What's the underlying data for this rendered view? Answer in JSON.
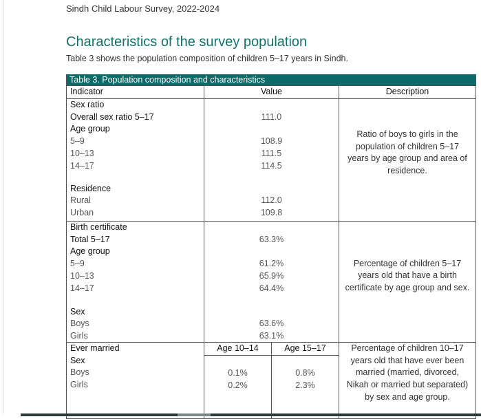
{
  "running_header": "Sindh Child Labour Survey, 2022-2024",
  "section_title": "Characteristics of the survey population",
  "intro": "Table 3 shows the population composition of children 5–17 years in Sindh.",
  "table": {
    "caption": "Table 3. Population composition and characteristics",
    "headers": [
      "Indicator",
      "Value",
      "Description"
    ],
    "sex_ratio": {
      "label": "Sex ratio",
      "overall_label": "Overall sex ratio 5–17",
      "overall": "111.0",
      "age_group_label": "Age group",
      "ages": [
        {
          "label": "5–9",
          "value": "108.9"
        },
        {
          "label": "10–13",
          "value": "111.5"
        },
        {
          "label": "14–17",
          "value": "114.5"
        }
      ],
      "residence_label": "Residence",
      "residence": [
        {
          "label": "Rural",
          "value": "112.0"
        },
        {
          "label": "Urban",
          "value": "109.8"
        }
      ],
      "description": "Ratio of boys to girls in the population of children 5–17 years by age group and area of residence."
    },
    "birth": {
      "label": "Birth certificate",
      "total_label": "Total 5–17",
      "total": "63.3%",
      "age_group_label": "Age group",
      "ages": [
        {
          "label": "5–9",
          "value": "61.2%"
        },
        {
          "label": "10–13",
          "value": "65.9%"
        },
        {
          "label": "14–17",
          "value": "64.4%"
        }
      ],
      "sex_label": "Sex",
      "sex": [
        {
          "label": "Boys",
          "value": "63.6%"
        },
        {
          "label": "Girls",
          "value": "63.1%"
        }
      ],
      "description": "Percentage of children 5–17 years old that have a birth certificate by age group and sex."
    },
    "married": {
      "label": "Ever married",
      "col_a": "Age 10–14",
      "col_b": "Age 15–17",
      "sex_label": "Sex",
      "rows": [
        {
          "label": "Boys",
          "a": "0.1%",
          "b": "0.8%"
        },
        {
          "label": "Girls",
          "a": "0.2%",
          "b": "2.3%"
        }
      ],
      "description": "Percentage of children 10–17 years old that have ever been married (married, divorced, Nikah or married but separated) by sex and age group."
    }
  }
}
